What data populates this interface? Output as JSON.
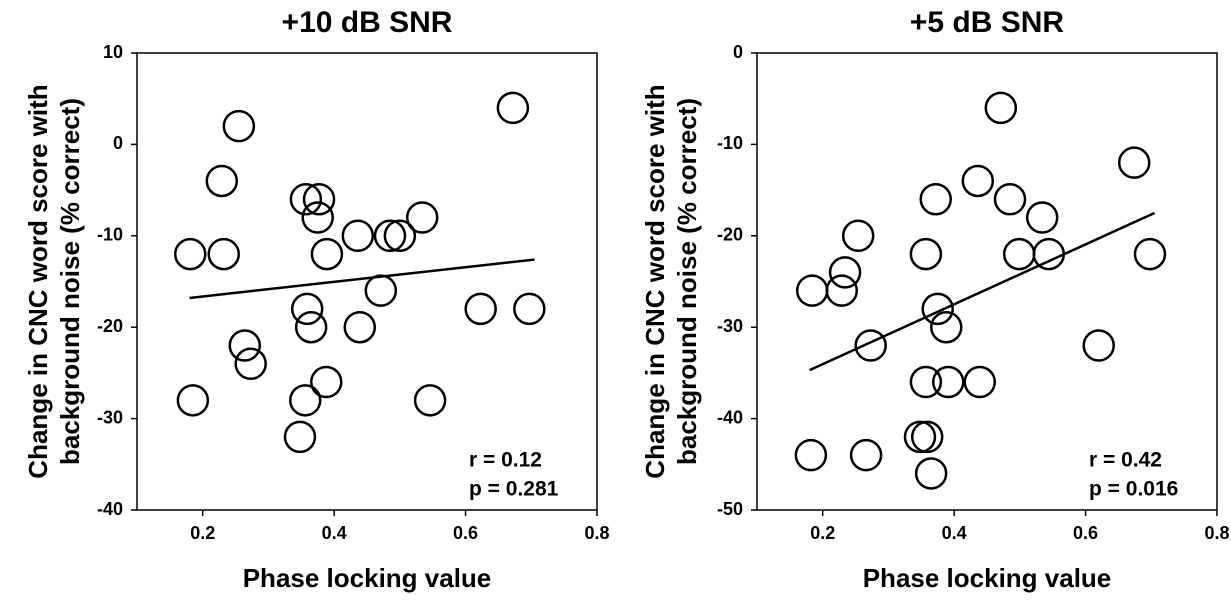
{
  "chart_data": [
    {
      "type": "scatter",
      "title": "+10 dB SNR",
      "xlabel": "Phase locking value",
      "ylabel": [
        "Change in CNC word score with",
        "background noise (% correct)"
      ],
      "xlim": [
        0.1,
        0.8
      ],
      "xticks": [
        0.2,
        0.4,
        0.6,
        0.8
      ],
      "ylim": [
        -40,
        10
      ],
      "yticks": [
        -40,
        -30,
        -20,
        -10,
        0,
        10
      ],
      "color": "#000000",
      "x": [
        0.181,
        0.185,
        0.229,
        0.232,
        0.255,
        0.264,
        0.273,
        0.357,
        0.377,
        0.375,
        0.389,
        0.359,
        0.365,
        0.356,
        0.348,
        0.388,
        0.436,
        0.439,
        0.485,
        0.5,
        0.471,
        0.534,
        0.546,
        0.623,
        0.672,
        0.697
      ],
      "values": [
        -12,
        -28,
        -4,
        -12,
        2,
        -22,
        -24,
        -6,
        -6,
        -8,
        -12,
        -18,
        -20,
        -28,
        -32,
        -26,
        -10,
        -20,
        -10,
        -10,
        -16,
        -8,
        -28,
        -18,
        4,
        -18
      ],
      "trendline": {
        "x": [
          0.18,
          0.705
        ],
        "y": [
          -16.8,
          -12.6
        ]
      },
      "annotations": [
        "r = 0.12",
        "p = 0.281"
      ]
    },
    {
      "type": "scatter",
      "title": "+5 dB SNR",
      "xlabel": "Phase locking value",
      "ylabel": [
        "Change in CNC word score with",
        "background noise (% correct)"
      ],
      "xlim": [
        0.1,
        0.8
      ],
      "xticks": [
        0.2,
        0.4,
        0.6,
        0.8
      ],
      "ylim": [
        -50,
        0
      ],
      "yticks": [
        -50,
        -40,
        -30,
        -20,
        -10,
        0
      ],
      "color": "#000000",
      "x": [
        0.184,
        0.182,
        0.229,
        0.234,
        0.254,
        0.266,
        0.273,
        0.357,
        0.357,
        0.348,
        0.359,
        0.365,
        0.372,
        0.375,
        0.388,
        0.391,
        0.436,
        0.439,
        0.471,
        0.485,
        0.499,
        0.534,
        0.544,
        0.62,
        0.674,
        0.698
      ],
      "values": [
        -26,
        -44,
        -26,
        -24,
        -20,
        -44,
        -32,
        -22,
        -36,
        -42,
        -42,
        -46,
        -16,
        -28,
        -30,
        -36,
        -14,
        -36,
        -6,
        -16,
        -22,
        -18,
        -22,
        -32,
        -12,
        -22
      ],
      "trendline": {
        "x": [
          0.18,
          0.705
        ],
        "y": [
          -34.7,
          -17.5
        ]
      },
      "annotations": [
        "r = 0.42",
        "p = 0.016"
      ]
    }
  ]
}
